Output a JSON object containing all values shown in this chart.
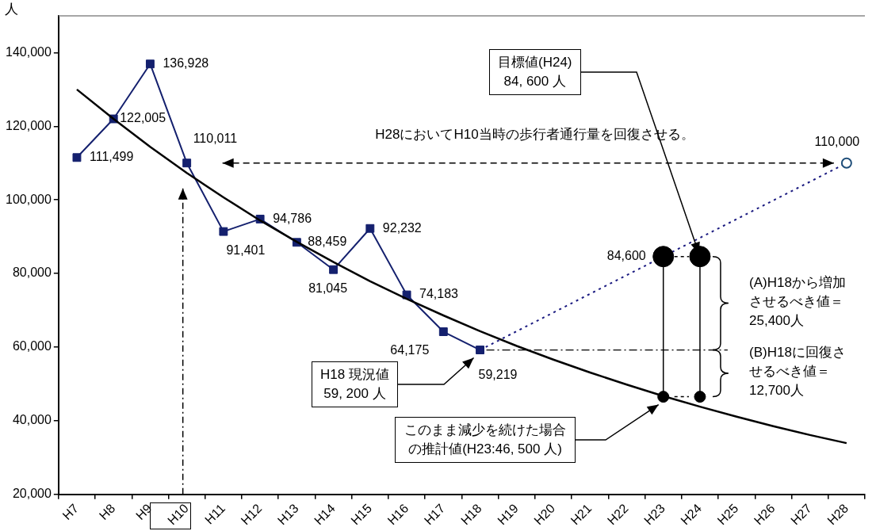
{
  "chart_data": {
    "type": "line",
    "ylabel": "人",
    "categories": [
      "H7",
      "H8",
      "H9",
      "H10",
      "H11",
      "H12",
      "H13",
      "H14",
      "H15",
      "H16",
      "H17",
      "H18",
      "H19",
      "H20",
      "H21",
      "H22",
      "H23",
      "H24",
      "H25",
      "H26",
      "H27",
      "H28"
    ],
    "series": [
      {
        "color": "#14206e",
        "marker": "square",
        "values": [
          111499,
          122005,
          136928,
          110011,
          91401,
          94786,
          88459,
          81045,
          92232,
          74183,
          64175,
          59219,
          null,
          null,
          null,
          null,
          null,
          null,
          null,
          null,
          null,
          null
        ],
        "value_labels": [
          "111,499",
          "122,005",
          "136,928",
          "110,011",
          "91,401",
          "94,786",
          "88,459",
          "81,045",
          "92,232",
          "74,183",
          "64,175",
          "59,219",
          null,
          null,
          null,
          null,
          null,
          null,
          null,
          null,
          null,
          null
        ]
      },
      {
        "color": "#1a1a80",
        "line_style": "dotted",
        "marker": "none",
        "values": [
          null,
          null,
          null,
          null,
          null,
          null,
          null,
          null,
          null,
          null,
          null,
          59219,
          null,
          null,
          null,
          null,
          null,
          null,
          null,
          null,
          null,
          110000
        ]
      },
      {
        "type": "scatter",
        "color": "#1f4e79",
        "marker": "circle",
        "x": [
          "H28"
        ],
        "values": [
          110000
        ],
        "value_labels": [
          "110,000"
        ]
      },
      {
        "color": "#000000",
        "marker": "none",
        "values": [
          130000,
          122000,
          114400,
          107300,
          100700,
          94400,
          88600,
          83100,
          77900,
          73100,
          68600,
          64300,
          60300,
          56600,
          53100,
          49800,
          46700,
          43800,
          41100,
          38500,
          36100,
          33900
        ]
      },
      {
        "type": "scatter",
        "color": "#000000",
        "marker": "circle",
        "x": [
          "H23",
          "H24"
        ],
        "values": [
          84600,
          84600
        ],
        "value_labels": [
          "84,600",
          null
        ]
      },
      {
        "type": "scatter",
        "color": "#000000",
        "marker": "circle",
        "x": [
          "H23",
          "H24"
        ],
        "values": [
          46500,
          46500
        ]
      }
    ],
    "ylim": [
      20000,
      150000
    ],
    "yticks": [
      {
        "value": 20000,
        "label": "20,000"
      },
      {
        "value": 40000,
        "label": "40,000"
      },
      {
        "value": 60000,
        "label": "60,000"
      },
      {
        "value": 80000,
        "label": "80,000"
      },
      {
        "value": 100000,
        "label": "100,000"
      },
      {
        "value": 120000,
        "label": "120,000"
      },
      {
        "value": 140000,
        "label": "140,000"
      }
    ],
    "ref_lines": [
      {
        "axis": "y",
        "value": 59219,
        "color": "#000000",
        "line_style": "dashed"
      }
    ],
    "annotations": [
      {
        "text": "目標値(H24)\n84, 600 人",
        "x": "H24",
        "y": 84600
      },
      "H28においてH10当時の歩行者通行量を回復させる。",
      "H18 現況値\n59, 200 人",
      "このまま減少を続けた場合の推計値(H23:46, 500 人)",
      "(A)H18から増加させるべき値＝25,400人",
      "(B)H18に回復させるべき値＝12,700人"
    ],
    "grid": false,
    "legend": false
  }
}
